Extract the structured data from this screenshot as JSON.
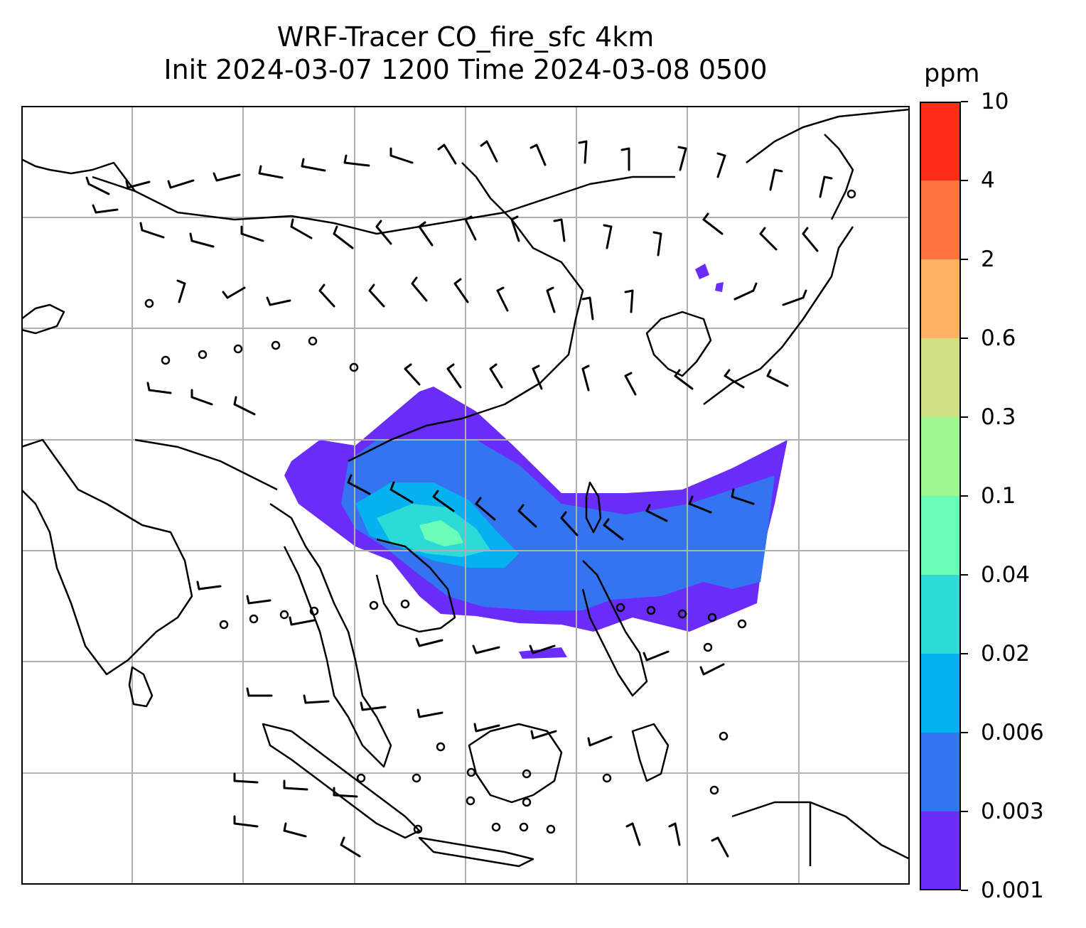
{
  "title": {
    "line1": "WRF-Tracer CO_fire_sfc 4km",
    "line2": "Init 2024-03-07 1200 Time 2024-03-08 0500"
  },
  "colorbar": {
    "unit": "ppm",
    "levels": [
      "0.001",
      "0.003",
      "0.006",
      "0.02",
      "0.04",
      "0.1",
      "0.3",
      "0.6",
      "2",
      "4",
      "10"
    ],
    "colors": [
      "#6a2cf8",
      "#3474f1",
      "#05b1ee",
      "#2ddbd6",
      "#69fdb7",
      "#9cf88f",
      "#cfdf81",
      "#feb063",
      "#ff7440",
      "#ff2c18"
    ]
  },
  "map": {
    "gridlines": true,
    "gridline_color": "#b0b0b0",
    "coastline_color": "#000000"
  }
}
